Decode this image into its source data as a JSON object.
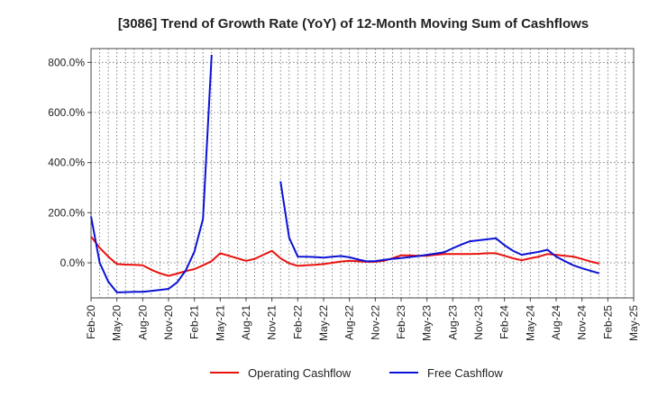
{
  "chart_data": {
    "type": "line",
    "title": "[3086]  Trend of Growth Rate (YoY) of 12-Month Moving Sum of Cashflows",
    "xlabel": "",
    "ylabel": "",
    "categories": [
      "Feb-20",
      "May-20",
      "Aug-20",
      "Nov-20",
      "Feb-21",
      "May-21",
      "Aug-21",
      "Nov-21",
      "Feb-22",
      "May-22",
      "Aug-22",
      "Nov-22",
      "Feb-23",
      "May-23",
      "Aug-23",
      "Nov-23",
      "Feb-24",
      "May-24",
      "Aug-24",
      "Nov-24",
      "Feb-25",
      "May-25"
    ],
    "yticks": [
      0,
      200,
      400,
      600,
      800
    ],
    "ytick_labels": [
      "0.0%",
      "200.0%",
      "400.0%",
      "600.0%",
      "800.0%"
    ],
    "ylim": [
      -140,
      855
    ],
    "xlim": [
      0,
      63
    ],
    "grid": true,
    "legend_position": "bottom",
    "series": [
      {
        "name": "Operating Cashflow",
        "color": "#e8120e",
        "points": [
          [
            0,
            105
          ],
          [
            1,
            60
          ],
          [
            2,
            25
          ],
          [
            3,
            -5
          ],
          [
            4,
            -7
          ],
          [
            5,
            -8
          ],
          [
            6,
            -10
          ],
          [
            7,
            -28
          ],
          [
            8,
            -42
          ],
          [
            9,
            -52
          ],
          [
            10,
            -43
          ],
          [
            11,
            -33
          ],
          [
            12,
            -25
          ],
          [
            13,
            -10
          ],
          [
            14,
            7
          ],
          [
            15,
            38
          ],
          [
            16,
            28
          ],
          [
            17,
            18
          ],
          [
            18,
            8
          ],
          [
            19,
            16
          ],
          [
            20,
            32
          ],
          [
            21,
            48
          ],
          [
            22,
            18
          ],
          [
            23,
            -2
          ],
          [
            24,
            -12
          ],
          [
            25,
            -10
          ],
          [
            26,
            -8
          ],
          [
            27,
            -5
          ],
          [
            28,
            0
          ],
          [
            29,
            5
          ],
          [
            30,
            8
          ],
          [
            31,
            6
          ],
          [
            32,
            4
          ],
          [
            33,
            4
          ],
          [
            34,
            8
          ],
          [
            35,
            18
          ],
          [
            36,
            30
          ],
          [
            37,
            30
          ],
          [
            38,
            28
          ],
          [
            39,
            28
          ],
          [
            40,
            32
          ],
          [
            41,
            35
          ],
          [
            42,
            35
          ],
          [
            43,
            35
          ],
          [
            44,
            35
          ],
          [
            45,
            36
          ],
          [
            46,
            38
          ],
          [
            47,
            38
          ],
          [
            48,
            28
          ],
          [
            49,
            18
          ],
          [
            50,
            10
          ],
          [
            51,
            18
          ],
          [
            52,
            25
          ],
          [
            53,
            35
          ],
          [
            54,
            32
          ],
          [
            55,
            28
          ],
          [
            56,
            25
          ],
          [
            57,
            15
          ],
          [
            58,
            5
          ],
          [
            59,
            -3
          ]
        ]
      },
      {
        "name": "Free Cashflow",
        "color": "#0b12d6",
        "segments": [
          [
            [
              0,
              185
            ],
            [
              1,
              0
            ],
            [
              2,
              -75
            ],
            [
              3,
              -118
            ],
            [
              4,
              -117
            ],
            [
              5,
              -116
            ],
            [
              6,
              -116
            ],
            [
              7,
              -112
            ],
            [
              8,
              -108
            ],
            [
              9,
              -104
            ],
            [
              10,
              -78
            ],
            [
              11,
              -30
            ],
            [
              12,
              45
            ],
            [
              13,
              175
            ],
            [
              14,
              830
            ]
          ],
          [
            [
              22,
              325
            ],
            [
              23,
              100
            ],
            [
              24,
              25
            ],
            [
              25,
              24
            ],
            [
              26,
              23
            ],
            [
              27,
              21
            ],
            [
              28,
              24
            ],
            [
              29,
              27
            ],
            [
              30,
              22
            ],
            [
              31,
              13
            ],
            [
              32,
              6
            ],
            [
              33,
              7
            ],
            [
              34,
              12
            ],
            [
              35,
              16
            ],
            [
              36,
              19
            ],
            [
              37,
              23
            ],
            [
              38,
              27
            ],
            [
              39,
              32
            ],
            [
              40,
              37
            ],
            [
              41,
              42
            ],
            [
              42,
              58
            ],
            [
              43,
              73
            ],
            [
              44,
              86
            ],
            [
              45,
              90
            ],
            [
              46,
              94
            ],
            [
              47,
              98
            ],
            [
              48,
              70
            ],
            [
              49,
              48
            ],
            [
              50,
              32
            ],
            [
              51,
              38
            ],
            [
              52,
              44
            ],
            [
              53,
              52
            ],
            [
              54,
              25
            ],
            [
              55,
              7
            ],
            [
              56,
              -10
            ],
            [
              57,
              -22
            ],
            [
              58,
              -32
            ],
            [
              59,
              -42
            ]
          ]
        ]
      }
    ]
  }
}
